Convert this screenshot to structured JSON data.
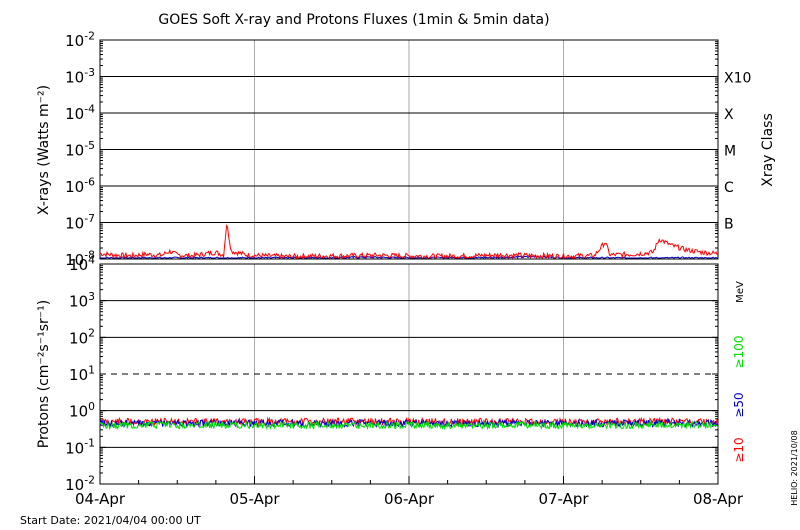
{
  "chart_data": [
    {
      "type": "line",
      "title": "GOES Soft X-ray and Protons Fluxes   (1min & 5min data)",
      "ylabel": "X-rays (Watts m⁻²)",
      "y_scale": "log",
      "ylim": [
        1e-08,
        0.01
      ],
      "y_ticks": [
        {
          "base": "10",
          "exp": "-8",
          "value": 1e-08
        },
        {
          "base": "10",
          "exp": "-7",
          "value": 1e-07
        },
        {
          "base": "10",
          "exp": "-6",
          "value": 1e-06
        },
        {
          "base": "10",
          "exp": "-5",
          "value": 1e-05
        },
        {
          "base": "10",
          "exp": "-4",
          "value": 0.0001
        },
        {
          "base": "10",
          "exp": "-3",
          "value": 0.001
        },
        {
          "base": "10",
          "exp": "-2",
          "value": 0.01
        }
      ],
      "right_axis_label": "Xray Class",
      "class_labels": [
        {
          "label": "B",
          "value": 1e-07
        },
        {
          "label": "C",
          "value": 1e-06
        },
        {
          "label": "M",
          "value": 1e-05
        },
        {
          "label": "X",
          "value": 0.0001
        },
        {
          "label": "X10",
          "value": 0.001
        }
      ],
      "x_range_days": [
        "04-Apr",
        "08-Apr"
      ],
      "grid": true,
      "series": [
        {
          "color": "#ff0000",
          "x_days": [
            0,
            0.1,
            0.2,
            0.3,
            0.4,
            0.45,
            0.5,
            0.6,
            0.75,
            0.8,
            0.82,
            0.85,
            0.95,
            1.05,
            1.2,
            1.4,
            1.6,
            1.8,
            2.0,
            2.2,
            2.4,
            2.6,
            2.8,
            3.0,
            3.2,
            3.27,
            3.3,
            3.45,
            3.58,
            3.62,
            3.7,
            3.8,
            3.9,
            4.0
          ],
          "y": [
            1.2e-08,
            1.1e-08,
            1.05e-08,
            1.15e-08,
            1.08e-08,
            1.4e-08,
            1.1e-08,
            1.05e-08,
            1.3e-08,
            1.1e-08,
            8e-08,
            1.4e-08,
            1.1e-08,
            1.05e-08,
            1e-08,
            1.03e-08,
            1.05e-08,
            1.08e-08,
            1.04e-08,
            1.02e-08,
            1.05e-08,
            1.1e-08,
            1.06e-08,
            1.03e-08,
            1.05e-08,
            2.5e-08,
            1.1e-08,
            1.15e-08,
            1.3e-08,
            3e-08,
            2e-08,
            1.5e-08,
            1.3e-08,
            1.2e-08
          ]
        },
        {
          "color": "#0000bb",
          "x_days": [
            0,
            0.5,
            1.0,
            1.5,
            1.7,
            2.0,
            2.5,
            2.85,
            3.0,
            3.5,
            4.0
          ],
          "y": [
            1e-08,
            1e-08,
            1e-08,
            1e-08,
            1.05e-08,
            1e-08,
            1.02e-08,
            1.08e-08,
            1e-08,
            1e-08,
            1e-08
          ]
        }
      ]
    },
    {
      "type": "line",
      "ylabel": "Protons (cm⁻²s⁻¹sr⁻¹)",
      "y_scale": "log",
      "ylim": [
        0.01,
        10000
      ],
      "y_ticks": [
        {
          "base": "10",
          "exp": "-2",
          "value": 0.01
        },
        {
          "base": "10",
          "exp": "-1",
          "value": 0.1
        },
        {
          "base": "10",
          "exp": "0",
          "value": 1
        },
        {
          "base": "10",
          "exp": "1",
          "value": 10
        },
        {
          "base": "10",
          "exp": "2",
          "value": 100
        },
        {
          "base": "10",
          "exp": "3",
          "value": 1000
        },
        {
          "base": "10",
          "exp": "4",
          "value": 10000
        }
      ],
      "threshold": 10,
      "unit_label": "MeV",
      "x_ticks": [
        "04-Apr",
        "05-Apr",
        "06-Apr",
        "07-Apr",
        "08-Apr"
      ],
      "grid": true,
      "series": [
        {
          "name": "≥10",
          "color": "#ff0000",
          "level": 0.5
        },
        {
          "name": "≥50",
          "color": "#0000cc",
          "level": 0.45
        },
        {
          "name": "≥100",
          "color": "#00dd00",
          "level": 0.4
        }
      ]
    }
  ],
  "footer": {
    "start_date": "Start Date: 2021/04/04 00:00 UT",
    "credit": "HELIO: 2021/10/08"
  }
}
